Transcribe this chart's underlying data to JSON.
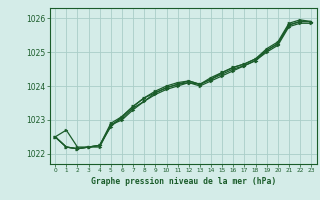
{
  "title": "Graphe pression niveau de la mer (hPa)",
  "bg_color": "#d4ece8",
  "grid_color": "#aacec8",
  "line_color": "#1a5c2a",
  "marker_color": "#1a5c2a",
  "xlim": [
    -0.5,
    23.5
  ],
  "ylim": [
    1021.7,
    1026.3
  ],
  "yticks": [
    1022,
    1023,
    1024,
    1025,
    1026
  ],
  "xticks": [
    0,
    1,
    2,
    3,
    4,
    5,
    6,
    7,
    8,
    9,
    10,
    11,
    12,
    13,
    14,
    15,
    16,
    17,
    18,
    19,
    20,
    21,
    22,
    23
  ],
  "series": [
    [
      1022.5,
      1022.7,
      1022.2,
      1022.2,
      1022.25,
      1022.8,
      1023.1,
      1023.4,
      1023.65,
      1023.85,
      1024.0,
      1024.1,
      1024.15,
      1024.05,
      1024.2,
      1024.4,
      1024.55,
      1024.65,
      1024.8,
      1025.1,
      1025.3,
      1025.85,
      1025.95,
      1025.9
    ],
    [
      1022.5,
      1022.2,
      1022.15,
      1022.2,
      1022.2,
      1022.85,
      1023.0,
      1023.3,
      1023.55,
      1023.75,
      1023.9,
      1024.0,
      1024.1,
      1024.0,
      1024.15,
      1024.3,
      1024.45,
      1024.6,
      1024.75,
      1025.0,
      1025.2,
      1025.75,
      1025.85,
      1025.85
    ],
    [
      1022.5,
      1022.2,
      1022.15,
      1022.2,
      1022.25,
      1022.85,
      1023.05,
      1023.35,
      1023.55,
      1023.8,
      1023.95,
      1024.05,
      1024.1,
      1024.05,
      1024.2,
      1024.35,
      1024.5,
      1024.6,
      1024.75,
      1025.05,
      1025.25,
      1025.8,
      1025.9,
      1025.9
    ],
    [
      1022.5,
      1022.2,
      1022.15,
      1022.2,
      1022.25,
      1022.9,
      1023.1,
      1023.4,
      1023.65,
      1023.8,
      1023.95,
      1024.05,
      1024.15,
      1024.05,
      1024.25,
      1024.4,
      1024.55,
      1024.65,
      1024.8,
      1025.05,
      1025.25,
      1025.8,
      1025.9,
      1025.9
    ]
  ],
  "figsize": [
    3.2,
    2.0
  ],
  "dpi": 100
}
